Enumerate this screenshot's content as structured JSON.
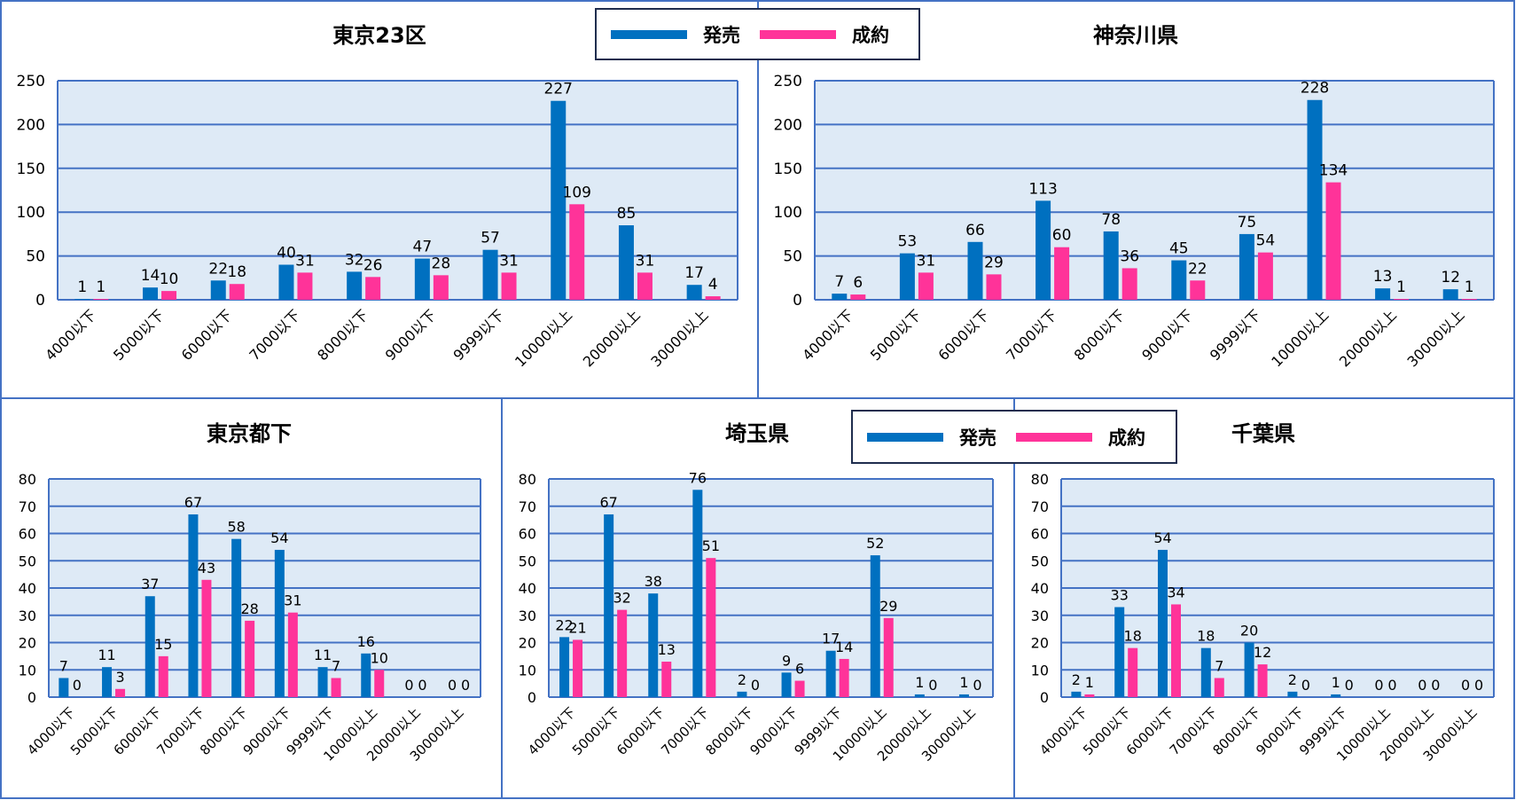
{
  "legend": {
    "sell_label": "発売",
    "contract_label": "成約"
  },
  "colors": {
    "sell": "#0070C0",
    "contract": "#FF3399",
    "grid": "#4472C4",
    "plot_bg": "#DEEAF6",
    "border": "#4472C4"
  },
  "chart_data": [
    {
      "type": "bar",
      "title": "東京23区",
      "categories": [
        "4000以下",
        "5000以下",
        "6000以下",
        "7000以下",
        "8000以下",
        "9000以下",
        "9999以下",
        "10000以上",
        "20000以上",
        "30000以上"
      ],
      "ylim": [
        0,
        250
      ],
      "ystep": 50,
      "legend": "top-right",
      "series": [
        {
          "name": "発売",
          "values": [
            1,
            14,
            22,
            40,
            32,
            47,
            57,
            227,
            85,
            17
          ]
        },
        {
          "name": "成約",
          "values": [
            1,
            10,
            18,
            31,
            26,
            28,
            31,
            109,
            31,
            4
          ]
        }
      ]
    },
    {
      "type": "bar",
      "title": "神奈川県",
      "categories": [
        "4000以下",
        "5000以下",
        "6000以下",
        "7000以下",
        "8000以下",
        "9000以下",
        "9999以下",
        "10000以上",
        "20000以上",
        "30000以上"
      ],
      "ylim": [
        0,
        250
      ],
      "ystep": 50,
      "series": [
        {
          "name": "発売",
          "values": [
            7,
            53,
            66,
            113,
            78,
            45,
            75,
            228,
            13,
            12
          ]
        },
        {
          "name": "成約",
          "values": [
            6,
            31,
            29,
            60,
            36,
            22,
            54,
            134,
            1,
            1
          ]
        }
      ]
    },
    {
      "type": "bar",
      "title": "東京都下",
      "categories": [
        "4000以下",
        "5000以下",
        "6000以下",
        "7000以下",
        "8000以下",
        "9000以下",
        "9999以下",
        "10000以上",
        "20000以上",
        "30000以上"
      ],
      "ylim": [
        0,
        80
      ],
      "ystep": 10,
      "series": [
        {
          "name": "発売",
          "values": [
            7,
            11,
            37,
            67,
            58,
            54,
            11,
            16,
            0,
            0
          ]
        },
        {
          "name": "成約",
          "values": [
            0,
            3,
            15,
            43,
            28,
            31,
            7,
            10,
            0,
            0
          ]
        }
      ]
    },
    {
      "type": "bar",
      "title": "埼玉県",
      "categories": [
        "4000以下",
        "5000以下",
        "6000以下",
        "7000以下",
        "8000以下",
        "9000以下",
        "9999以下",
        "10000以上",
        "20000以上",
        "30000以上"
      ],
      "ylim": [
        0,
        80
      ],
      "ystep": 10,
      "series": [
        {
          "name": "発売",
          "values": [
            22,
            67,
            38,
            76,
            2,
            9,
            17,
            52,
            1,
            1
          ]
        },
        {
          "name": "成約",
          "values": [
            21,
            32,
            13,
            51,
            0,
            6,
            14,
            29,
            0,
            0
          ]
        }
      ]
    },
    {
      "type": "bar",
      "title": "千葉県",
      "categories": [
        "4000以下",
        "5000以下",
        "6000以下",
        "7000以下",
        "8000以下",
        "9000以下",
        "9999以下",
        "10000以上",
        "20000以上",
        "30000以上"
      ],
      "ylim": [
        0,
        80
      ],
      "ystep": 10,
      "series": [
        {
          "name": "発売",
          "values": [
            2,
            33,
            54,
            18,
            20,
            2,
            1,
            0,
            0,
            0
          ]
        },
        {
          "name": "成約",
          "values": [
            1,
            18,
            34,
            7,
            12,
            0,
            0,
            0,
            0,
            0
          ]
        }
      ]
    }
  ]
}
